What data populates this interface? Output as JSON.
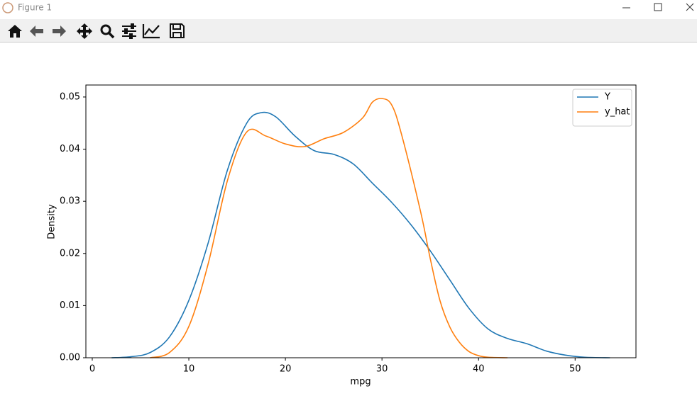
{
  "window_title": "Figure 1",
  "chart_data": {
    "type": "line",
    "xlabel": "mpg",
    "ylabel": "Density",
    "xlim": [
      -0.66,
      56.3
    ],
    "ylim": [
      0,
      0.0523
    ],
    "xticks": [
      0,
      10,
      20,
      30,
      40,
      50
    ],
    "yticks": [
      {
        "value": 0,
        "label": "0.00"
      },
      {
        "value": 0.01,
        "label": "0.01"
      },
      {
        "value": 0.02,
        "label": "0.02"
      },
      {
        "value": 0.03,
        "label": "0.03"
      },
      {
        "value": 0.04,
        "label": "0.04"
      },
      {
        "value": 0.05,
        "label": "0.05"
      }
    ],
    "legend": "upper right",
    "series": [
      {
        "name": "Y",
        "color": "#1f77b4",
        "x": [
          2,
          4,
          6,
          8,
          10,
          12,
          14,
          16,
          17.5,
          19,
          21,
          23,
          25,
          27,
          29,
          31,
          33,
          35,
          37,
          39,
          41,
          43,
          45,
          47,
          49,
          51,
          53.6
        ],
        "values": [
          0,
          0.0002,
          0.001,
          0.004,
          0.011,
          0.022,
          0.036,
          0.045,
          0.047,
          0.0462,
          0.0425,
          0.0397,
          0.039,
          0.0372,
          0.0335,
          0.0298,
          0.0255,
          0.0205,
          0.015,
          0.0095,
          0.0055,
          0.0037,
          0.0027,
          0.0013,
          0.0005,
          0.0001,
          0
        ]
      },
      {
        "name": "y_hat",
        "color": "#ff7f0e",
        "x": [
          6,
          8,
          10,
          12,
          14,
          16,
          18,
          20,
          22,
          24,
          26,
          28,
          29,
          30,
          31,
          32,
          34,
          35,
          36,
          37,
          38,
          39,
          40,
          41,
          43
        ],
        "values": [
          0,
          0.001,
          0.006,
          0.018,
          0.034,
          0.0433,
          0.0425,
          0.041,
          0.0405,
          0.042,
          0.0432,
          0.046,
          0.049,
          0.0497,
          0.0485,
          0.043,
          0.028,
          0.019,
          0.011,
          0.006,
          0.003,
          0.0012,
          0.0004,
          0.0001,
          0
        ]
      }
    ]
  }
}
